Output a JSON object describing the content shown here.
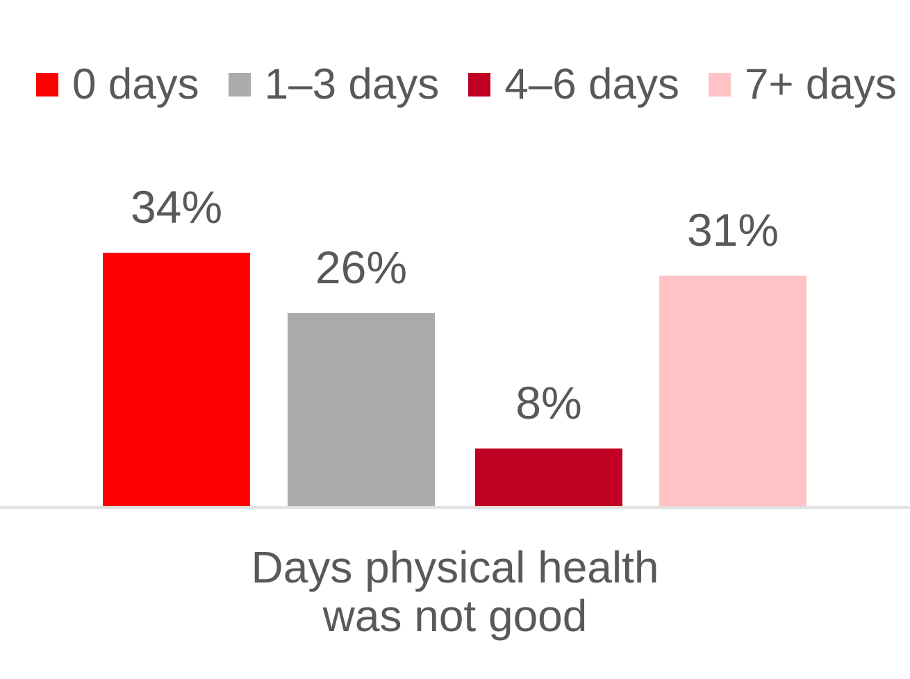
{
  "chart_data": {
    "type": "bar",
    "title": "",
    "categories": [
      "0 days",
      "1–3 days",
      "4–6 days",
      "7+ days"
    ],
    "values": [
      34,
      26,
      8,
      31
    ],
    "value_labels": [
      "34%",
      "26%",
      "8%",
      "31%"
    ],
    "xlabel": "Days physical health was not good",
    "xlabel_lines": [
      "Days physical health",
      "was not good"
    ],
    "ylabel": "",
    "ylim": [
      0,
      40
    ],
    "grid": false,
    "y_axis_visible": false,
    "x_axis_tick_labels_visible": false,
    "legend_position": "top",
    "series_colors": [
      "#FF0000",
      "#ABABAB",
      "#C00023",
      "#FFC3C5"
    ],
    "text_color": "#595959",
    "axis_line_color": "#E2E2E2",
    "background_color": "#FFFFFF"
  }
}
